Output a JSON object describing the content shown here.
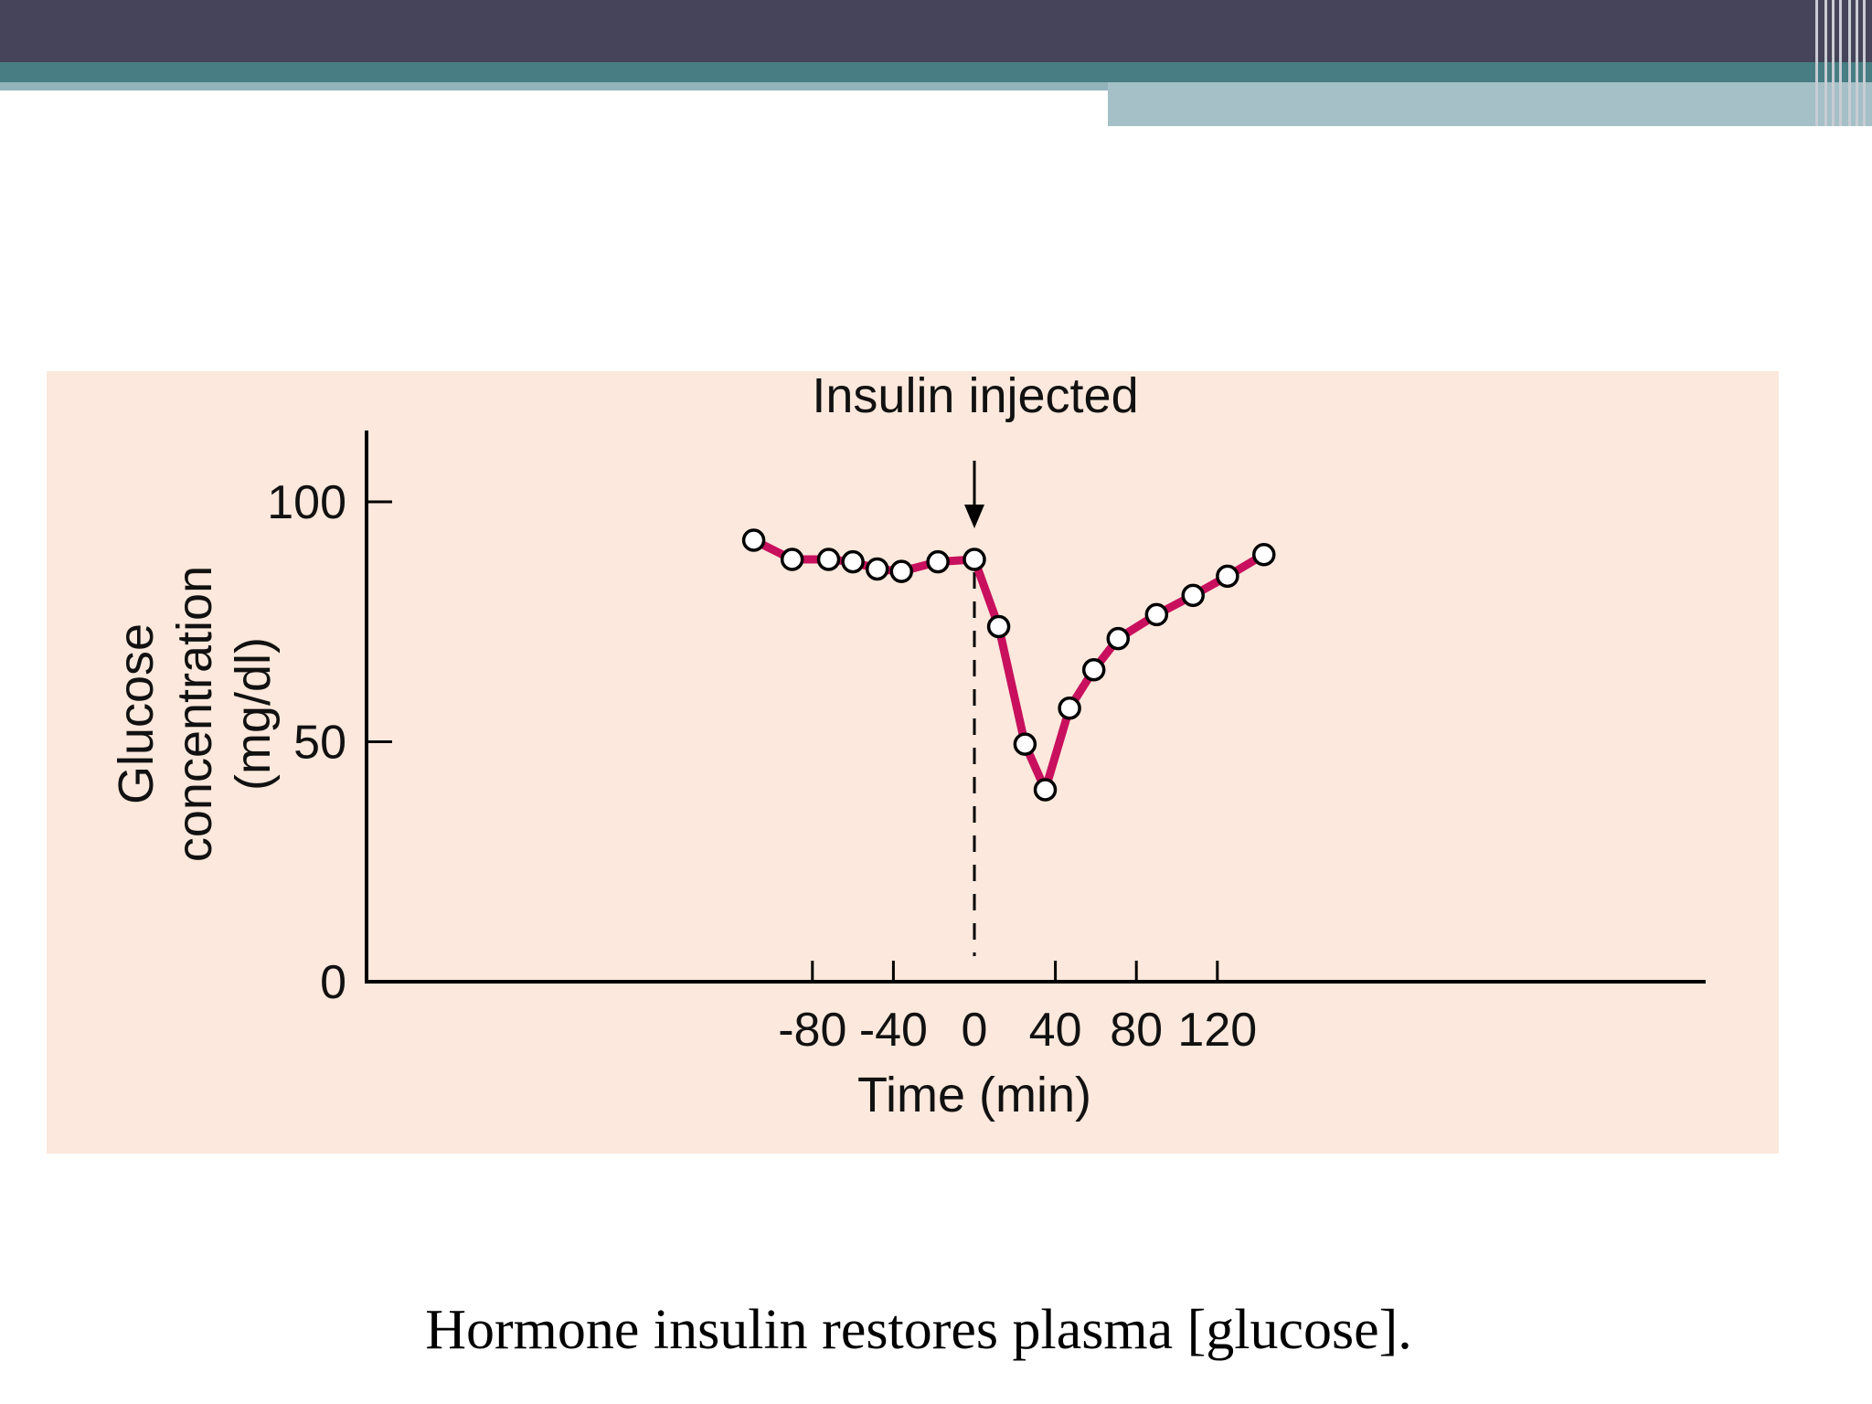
{
  "slide": {
    "caption": "Hormone insulin restores plasma [glucose]."
  },
  "colors": {
    "header_dark": "#45445a",
    "header_teal": "#477d83",
    "header_light": "#a5c0c7",
    "chart_background": "#fce8dc",
    "series_line": "#c8105e",
    "marker_fill": "#ffffff",
    "axis": "#000000"
  },
  "chart_data": {
    "type": "line",
    "title": "",
    "xlabel": "Time (min)",
    "ylabel_lines": [
      "Glucose",
      "concentration",
      "(mg/dl)"
    ],
    "xlim": [
      -120,
      145
    ],
    "ylim": [
      0,
      115
    ],
    "x_ticks": [
      -80,
      -40,
      0,
      40,
      80,
      120
    ],
    "x_tick_labels": [
      "-80",
      "-40",
      "0",
      "40",
      "80",
      "120"
    ],
    "y_ticks": [
      0,
      50,
      100
    ],
    "y_tick_labels": [
      "0",
      "50",
      "100"
    ],
    "grid": false,
    "legend": "none",
    "annotation": {
      "text": "Insulin injected",
      "x": 0,
      "style": "arrow with dashed vertical line"
    },
    "series": [
      {
        "x": [
          -109,
          -90,
          -72,
          -60,
          -48,
          -36,
          -18,
          0,
          12,
          25,
          35,
          47,
          59,
          71,
          90,
          108,
          125,
          143
        ],
        "y": [
          92,
          88,
          88,
          87.5,
          86,
          85.5,
          87.5,
          88,
          74,
          49.5,
          40,
          57,
          65,
          71.5,
          76.5,
          80.5,
          84.5,
          89
        ]
      }
    ]
  }
}
